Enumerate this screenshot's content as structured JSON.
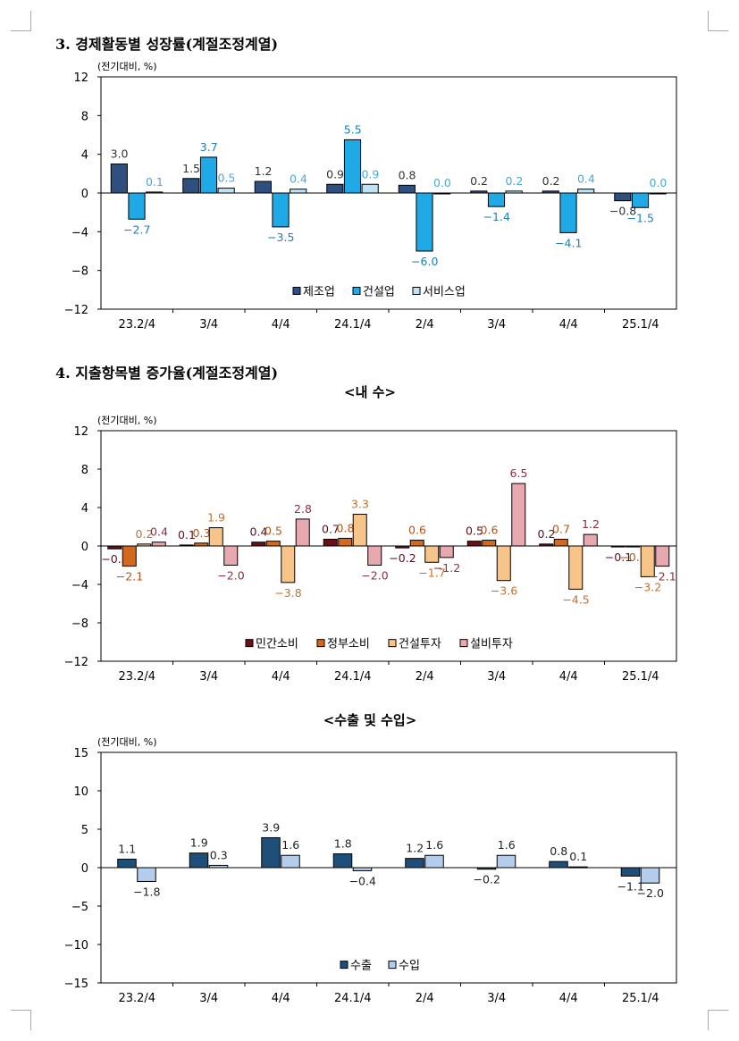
{
  "section3": {
    "heading": "3. 경제활동별 성장률(계절조정계열)"
  },
  "section4": {
    "heading": "4. 지출항목별 증가율(계절조정계열)",
    "sub_domestic": "<내   수>",
    "sub_trade": "<수출 및 수입>"
  },
  "chart_data": [
    {
      "type": "bar",
      "unit_label": "(전기대비, %)",
      "categories": [
        "23.2/4",
        "3/4",
        "4/4",
        "24.1/4",
        "2/4",
        "3/4",
        "4/4",
        "25.1/4"
      ],
      "ylim": [
        -12,
        12
      ],
      "yticks": [
        12,
        8,
        4,
        0,
        -4,
        -8,
        -12
      ],
      "legend_position": "bottom-center",
      "series": [
        {
          "name": "제조업",
          "color": "#2f4f7f",
          "label_color": "#333333",
          "values": [
            3.0,
            1.5,
            1.2,
            0.9,
            0.8,
            0.2,
            0.2,
            -0.8
          ]
        },
        {
          "name": "건설업",
          "color": "#1fa9e6",
          "label_color": "#1f7fb8",
          "values": [
            -2.7,
            3.7,
            -3.5,
            5.5,
            -6.0,
            -1.4,
            -4.1,
            -1.5
          ]
        },
        {
          "name": "서비스업",
          "color": "#bfe3f5",
          "label_color": "#4aa8d8",
          "values": [
            0.1,
            0.5,
            0.4,
            0.9,
            0.0,
            0.2,
            0.4,
            0.0
          ]
        }
      ]
    },
    {
      "type": "bar",
      "unit_label": "(전기대비, %)",
      "categories": [
        "23.2/4",
        "3/4",
        "4/4",
        "24.1/4",
        "2/4",
        "3/4",
        "4/4",
        "25.1/4"
      ],
      "ylim": [
        -12,
        12
      ],
      "yticks": [
        12,
        8,
        4,
        0,
        -4,
        -8,
        -12
      ],
      "legend_position": "bottom-center",
      "series": [
        {
          "name": "민간소비",
          "color": "#6b0f1a",
          "label_color": "#5a1020",
          "values": [
            -0.3,
            0.1,
            0.4,
            0.7,
            -0.2,
            0.5,
            0.2,
            -0.1
          ]
        },
        {
          "name": "정부소비",
          "color": "#d2691e",
          "label_color": "#b8541a",
          "values": [
            -2.1,
            0.3,
            0.5,
            0.8,
            0.6,
            0.6,
            0.7,
            -0.1
          ]
        },
        {
          "name": "건설투자",
          "color": "#f7c48a",
          "label_color": "#c8702a",
          "values": [
            0.2,
            1.9,
            -3.8,
            3.3,
            -1.7,
            -3.6,
            -4.5,
            -3.2
          ]
        },
        {
          "name": "설비투자",
          "color": "#e8a8b0",
          "label_color": "#8a3040",
          "values": [
            0.4,
            -2.0,
            2.8,
            -2.0,
            -1.2,
            6.5,
            1.2,
            -2.1
          ]
        }
      ]
    },
    {
      "type": "bar",
      "unit_label": "(전기대비, %)",
      "categories": [
        "23.2/4",
        "3/4",
        "4/4",
        "24.1/4",
        "2/4",
        "3/4",
        "4/4",
        "25.1/4"
      ],
      "ylim": [
        -15,
        15
      ],
      "yticks": [
        15,
        10,
        5,
        0,
        -5,
        -10,
        -15
      ],
      "legend_position": "bottom-center",
      "series": [
        {
          "name": "수출",
          "color": "#1f4e79",
          "label_color": "#222222",
          "values": [
            1.1,
            1.9,
            3.9,
            1.8,
            1.2,
            -0.2,
            0.8,
            -1.1
          ]
        },
        {
          "name": "수입",
          "color": "#b4cdec",
          "label_color": "#222222",
          "values": [
            -1.8,
            0.3,
            1.6,
            -0.4,
            1.6,
            1.6,
            0.1,
            -2.0
          ]
        }
      ]
    }
  ]
}
